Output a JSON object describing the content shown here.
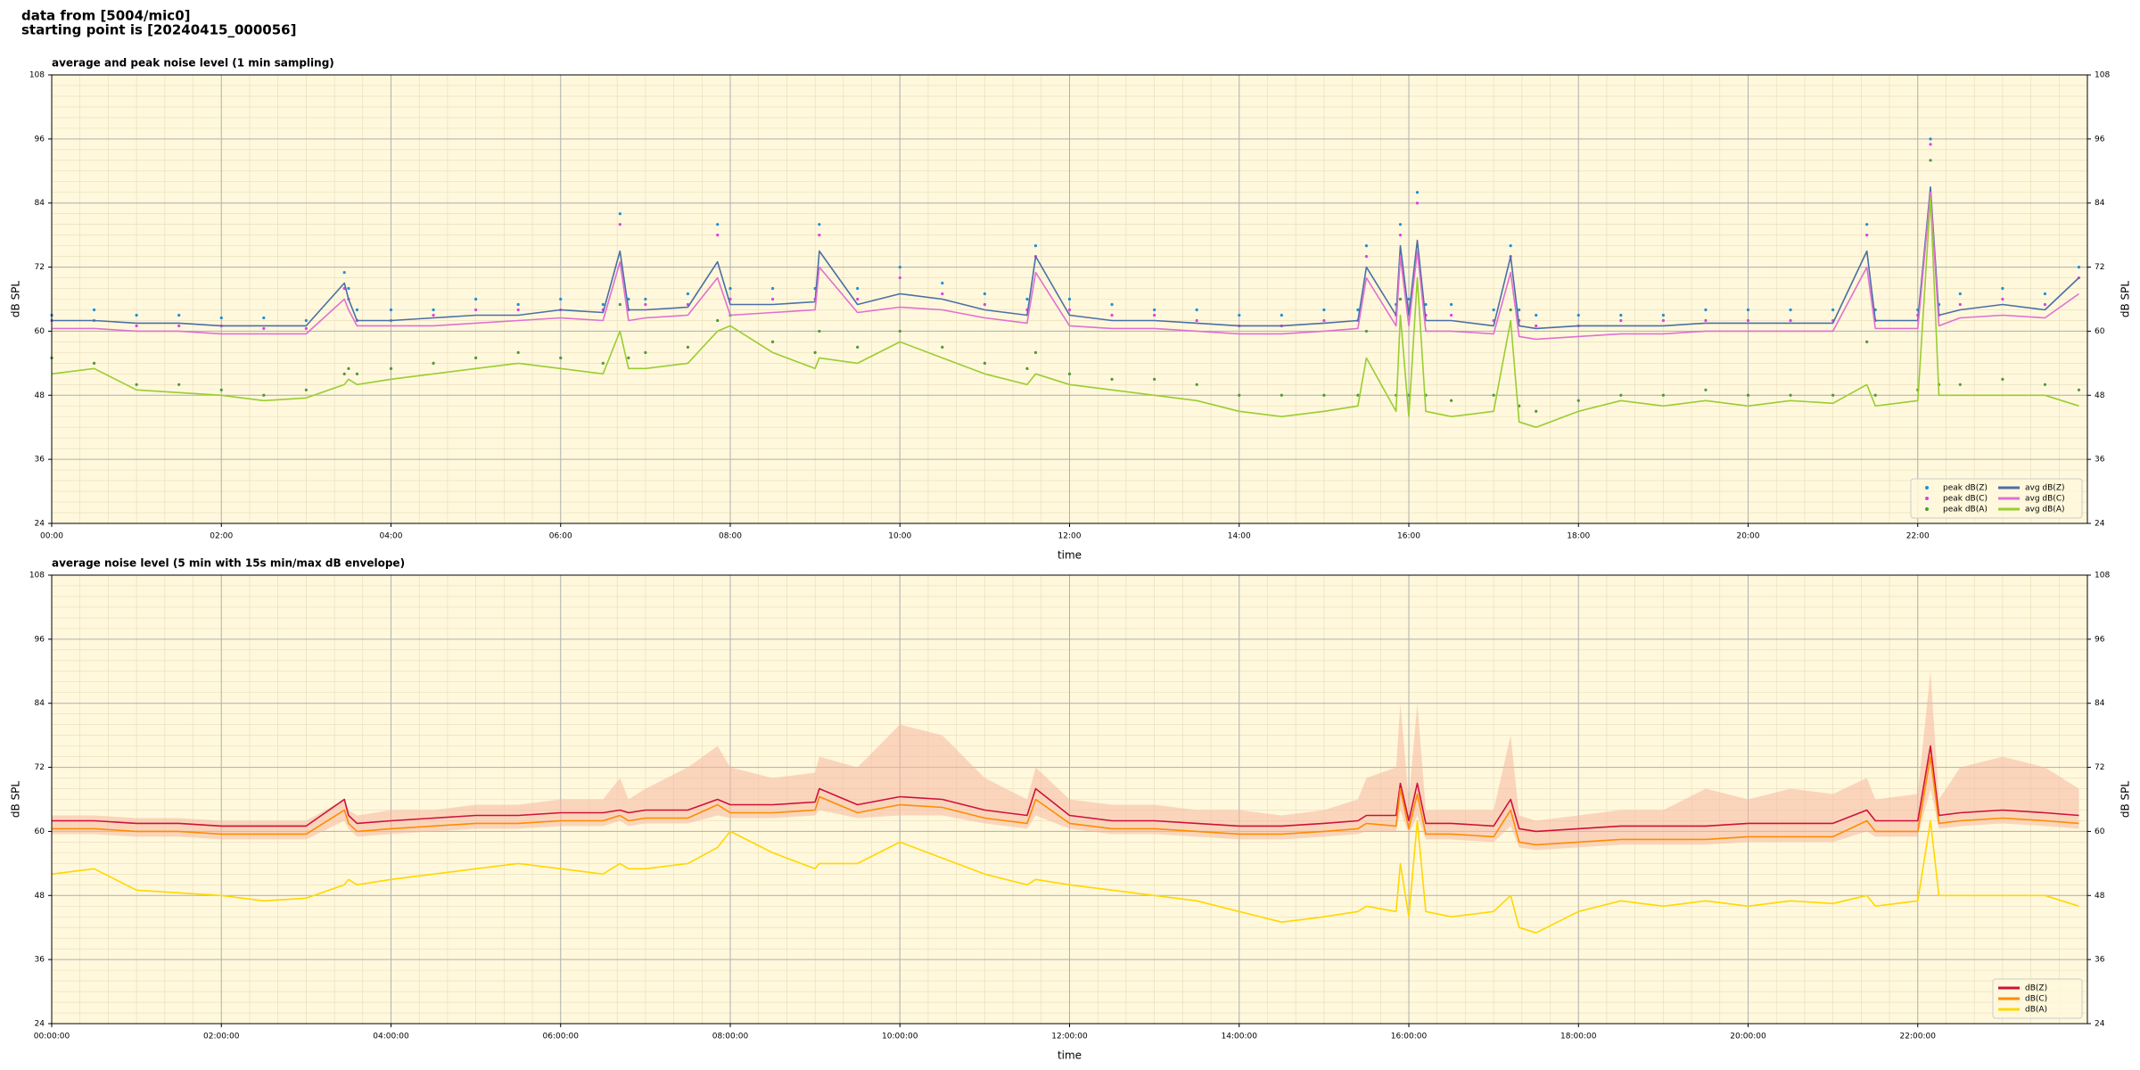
{
  "header": {
    "line1": "data from [5004/mic0]",
    "line2": "starting point is [20240415_000056]"
  },
  "chart_data": [
    {
      "type": "line",
      "title": "average and peak noise level (1 min sampling)",
      "x_label": "time",
      "y_label": "dB SPL",
      "background": "#fff8dc",
      "grid": true,
      "minor_grid": true,
      "legend": "lower right",
      "legend_columns": 2,
      "xlim": [
        0,
        24
      ],
      "ylim": [
        24,
        108
      ],
      "yticks": [
        24,
        36,
        48,
        60,
        72,
        84,
        96,
        108
      ],
      "xticks": [
        {
          "value": 0,
          "label": "00:00"
        },
        {
          "value": 2,
          "label": "02:00"
        },
        {
          "value": 4,
          "label": "04:00"
        },
        {
          "value": 6,
          "label": "06:00"
        },
        {
          "value": 8,
          "label": "08:00"
        },
        {
          "value": 10,
          "label": "10:00"
        },
        {
          "value": 12,
          "label": "12:00"
        },
        {
          "value": 14,
          "label": "14:00"
        },
        {
          "value": 16,
          "label": "16:00"
        },
        {
          "value": 18,
          "label": "18:00"
        },
        {
          "value": 20,
          "label": "20:00"
        },
        {
          "value": 22,
          "label": "22:00"
        }
      ],
      "x": [
        0,
        0.5,
        1,
        1.5,
        2,
        2.5,
        3,
        3.45,
        3.5,
        3.6,
        4,
        4.5,
        5,
        5.5,
        6,
        6.5,
        6.7,
        6.8,
        7,
        7.5,
        7.85,
        8,
        8.5,
        9,
        9.05,
        9.5,
        10,
        10.5,
        11,
        11.5,
        11.6,
        12,
        12.5,
        13,
        13.5,
        14,
        14.5,
        15,
        15.4,
        15.5,
        15.85,
        15.9,
        16,
        16.1,
        16.2,
        16.5,
        17,
        17.2,
        17.3,
        17.5,
        18,
        18.5,
        19,
        19.5,
        20,
        20.5,
        21,
        21.4,
        21.5,
        22,
        22.15,
        22.25,
        22.5,
        23,
        23.5,
        23.9
      ],
      "series": [
        {
          "name": "peak dB(Z)",
          "color": "#1f8fd6",
          "style": "dots",
          "values": [
            63,
            64,
            63,
            63,
            62.5,
            62.5,
            62,
            71,
            68,
            64,
            64,
            64,
            66,
            65,
            66,
            65,
            82,
            66,
            66,
            67,
            80,
            68,
            68,
            68,
            80,
            68,
            72,
            69,
            67,
            66,
            76,
            66,
            65,
            64,
            64,
            63,
            63,
            64,
            64,
            76,
            65,
            80,
            66,
            86,
            65,
            65,
            64,
            76,
            64,
            63,
            63,
            63,
            63,
            64,
            64,
            64,
            64,
            80,
            64,
            64,
            96,
            65,
            67,
            68,
            67,
            72
          ]
        },
        {
          "name": "peak dB(C)",
          "color": "#e040e0",
          "style": "dots",
          "values": [
            62,
            62,
            61,
            61,
            61,
            60.5,
            60.5,
            68,
            66,
            62,
            62,
            63,
            64,
            64,
            64,
            64,
            80,
            64,
            65,
            65,
            78,
            66,
            66,
            66,
            78,
            66,
            70,
            67,
            65,
            64,
            74,
            64,
            63,
            63,
            62,
            61,
            61,
            62,
            62,
            74,
            63,
            78,
            64,
            84,
            63,
            63,
            62,
            74,
            62,
            61,
            61,
            62,
            62,
            62,
            62,
            62,
            62,
            78,
            62,
            63,
            95,
            63,
            65,
            66,
            65,
            70
          ]
        },
        {
          "name": "peak dB(A)",
          "color": "#4a9a3a",
          "style": "dots",
          "values": [
            55,
            54,
            50,
            50,
            49,
            48,
            49,
            52,
            53,
            52,
            53,
            54,
            55,
            56,
            55,
            54,
            65,
            55,
            56,
            57,
            62,
            63,
            58,
            56,
            60,
            57,
            60,
            57,
            54,
            53,
            56,
            52,
            51,
            51,
            50,
            48,
            48,
            48,
            48,
            60,
            48,
            66,
            48,
            74,
            48,
            47,
            48,
            64,
            46,
            45,
            47,
            48,
            48,
            49,
            48,
            48,
            48,
            58,
            48,
            49,
            92,
            50,
            50,
            51,
            50,
            49
          ]
        },
        {
          "name": "avg dB(Z)",
          "color": "#4a6fa5",
          "style": "line",
          "values": [
            62,
            62,
            61.5,
            61.5,
            61,
            61,
            61,
            69,
            66,
            62,
            62,
            62.5,
            63,
            63,
            64,
            63.5,
            75,
            64,
            64,
            64.5,
            73,
            65,
            65,
            65.5,
            75,
            65,
            67,
            66,
            64,
            63,
            74,
            63,
            62,
            62,
            61.5,
            61,
            61,
            61.5,
            62,
            72,
            63,
            76,
            63,
            77,
            62,
            62,
            61,
            74,
            61,
            60.5,
            61,
            61,
            61,
            61.5,
            61.5,
            61.5,
            61.5,
            75,
            62,
            62,
            87,
            63,
            64,
            65,
            64,
            70
          ]
        },
        {
          "name": "avg dB(C)",
          "color": "#e070d0",
          "style": "line",
          "values": [
            60.5,
            60.5,
            60,
            60,
            59.5,
            59.5,
            59.5,
            66,
            64,
            61,
            61,
            61,
            61.5,
            62,
            62.5,
            62,
            73,
            62,
            62.5,
            63,
            70,
            63,
            63.5,
            64,
            72,
            63.5,
            64.5,
            64,
            62.5,
            61.5,
            71,
            61,
            60.5,
            60.5,
            60,
            59.5,
            59.5,
            60,
            60.5,
            70,
            61,
            74,
            61,
            75,
            60,
            60,
            59.5,
            71,
            59,
            58.5,
            59,
            59.5,
            59.5,
            60,
            60,
            60,
            60,
            72,
            60.5,
            60.5,
            86,
            61,
            62.5,
            63,
            62.5,
            67
          ]
        },
        {
          "name": "avg dB(A)",
          "color": "#9acd32",
          "style": "line",
          "values": [
            52,
            53,
            49,
            48.5,
            48,
            47,
            47.5,
            50,
            51,
            50,
            51,
            52,
            53,
            54,
            53,
            52,
            60,
            53,
            53,
            54,
            60,
            61,
            56,
            53,
            55,
            54,
            58,
            55,
            52,
            50,
            52,
            50,
            49,
            48,
            47,
            45,
            44,
            45,
            46,
            55,
            45,
            63,
            44,
            70,
            45,
            44,
            45,
            62,
            43,
            42,
            45,
            47,
            46,
            47,
            46,
            47,
            46.5,
            50,
            46,
            47,
            85,
            48,
            48,
            48,
            48,
            46
          ]
        }
      ]
    },
    {
      "type": "line",
      "title": "average noise level (5 min with 15s min/max dB envelope)",
      "x_label": "time",
      "y_label": "dB SPL",
      "background": "#fff8dc",
      "grid": true,
      "minor_grid": true,
      "legend": "lower right",
      "legend_columns": 1,
      "xlim": [
        0,
        24
      ],
      "ylim": [
        24,
        108
      ],
      "yticks": [
        24,
        36,
        48,
        60,
        72,
        84,
        96,
        108
      ],
      "xticks": [
        {
          "value": 0,
          "label": "00:00:00"
        },
        {
          "value": 2,
          "label": "02:00:00"
        },
        {
          "value": 4,
          "label": "04:00:00"
        },
        {
          "value": 6,
          "label": "06:00:00"
        },
        {
          "value": 8,
          "label": "08:00:00"
        },
        {
          "value": 10,
          "label": "10:00:00"
        },
        {
          "value": 12,
          "label": "12:00:00"
        },
        {
          "value": 14,
          "label": "14:00:00"
        },
        {
          "value": 16,
          "label": "16:00:00"
        },
        {
          "value": 18,
          "label": "18:00:00"
        },
        {
          "value": 20,
          "label": "20:00:00"
        },
        {
          "value": 22,
          "label": "22:00:00"
        }
      ],
      "x": [
        0,
        0.5,
        1,
        1.5,
        2,
        2.5,
        3,
        3.45,
        3.5,
        3.6,
        4,
        4.5,
        5,
        5.5,
        6,
        6.5,
        6.7,
        6.8,
        7,
        7.5,
        7.85,
        8,
        8.5,
        9,
        9.05,
        9.5,
        10,
        10.5,
        11,
        11.5,
        11.6,
        12,
        12.5,
        13,
        13.5,
        14,
        14.5,
        15,
        15.4,
        15.5,
        15.85,
        15.9,
        16,
        16.1,
        16.2,
        16.5,
        17,
        17.2,
        17.3,
        17.5,
        18,
        18.5,
        19,
        19.5,
        20,
        20.5,
        21,
        21.4,
        21.5,
        22,
        22.15,
        22.25,
        22.5,
        23,
        23.5,
        23.9
      ],
      "band": {
        "color": "#f5b8a0",
        "values": [
          63,
          63,
          62.5,
          62.5,
          62,
          62,
          62,
          66,
          64,
          63,
          64,
          64,
          65,
          65,
          66,
          66,
          70,
          66,
          68,
          72,
          76,
          72,
          70,
          71,
          74,
          72,
          80,
          78,
          70,
          66,
          72,
          66,
          65,
          65,
          64,
          64,
          63,
          64,
          66,
          70,
          72,
          84,
          66,
          84,
          64,
          64,
          64,
          78,
          63,
          62,
          63,
          64,
          64,
          68,
          66,
          68,
          67,
          70,
          66,
          67,
          90,
          66,
          72,
          74,
          72,
          68
        ],
        "min": [
          59.5,
          59.5,
          59,
          59,
          58.5,
          58.5,
          58.5,
          62,
          60.5,
          59,
          59.5,
          60,
          60.5,
          60.5,
          61,
          61,
          62,
          61,
          61.5,
          61.5,
          63,
          62.5,
          62.5,
          63,
          64,
          62.5,
          63,
          63,
          61.5,
          60.5,
          63,
          60.5,
          59.5,
          59.5,
          59,
          58.5,
          58.5,
          59,
          59.5,
          60,
          60,
          64,
          59.5,
          63,
          58.5,
          58.5,
          58,
          61,
          57,
          56.5,
          57,
          57.5,
          57.5,
          57.5,
          58,
          58,
          58,
          60,
          59,
          59,
          68,
          60.5,
          61,
          61.5,
          61,
          60.5
        ]
      },
      "series": [
        {
          "name": "dB(Z)",
          "color": "#d0103a",
          "style": "line",
          "values": [
            62,
            62,
            61.5,
            61.5,
            61,
            61,
            61,
            66,
            63,
            61.5,
            62,
            62.5,
            63,
            63,
            63.5,
            63.5,
            64,
            63.5,
            64,
            64,
            66,
            65,
            65,
            65.5,
            68,
            65,
            66.5,
            66,
            64,
            63,
            68,
            63,
            62,
            62,
            61.5,
            61,
            61,
            61.5,
            62,
            63,
            63,
            69,
            62,
            69,
            61.5,
            61.5,
            61,
            66,
            60.5,
            60,
            60.5,
            61,
            61,
            61,
            61.5,
            61.5,
            61.5,
            64,
            62,
            62,
            76,
            63,
            63.5,
            64,
            63.5,
            63
          ]
        },
        {
          "name": "dB(C)",
          "color": "#ff8c00",
          "style": "line",
          "values": [
            60.5,
            60.5,
            60,
            60,
            59.5,
            59.5,
            59.5,
            64,
            61.5,
            60,
            60.5,
            61,
            61.5,
            61.5,
            62,
            62,
            63,
            62,
            62.5,
            62.5,
            65,
            63.5,
            63.5,
            64,
            66.5,
            63.5,
            65,
            64.5,
            62.5,
            61.5,
            66,
            61.5,
            60.5,
            60.5,
            60,
            59.5,
            59.5,
            60,
            60.5,
            61.5,
            61,
            68,
            60.5,
            67,
            59.5,
            59.5,
            59,
            64,
            58,
            57.5,
            58,
            58.5,
            58.5,
            58.5,
            59,
            59,
            59,
            62,
            60,
            60,
            74,
            61.5,
            62,
            62.5,
            62,
            61.5
          ]
        },
        {
          "name": "dB(A)",
          "color": "#ffd700",
          "style": "line",
          "values": [
            52,
            53,
            49,
            48.5,
            48,
            47,
            47.5,
            50,
            51,
            50,
            51,
            52,
            53,
            54,
            53,
            52,
            54,
            53,
            53,
            54,
            57,
            60,
            56,
            53,
            54,
            54,
            58,
            55,
            52,
            50,
            51,
            50,
            49,
            48,
            47,
            45,
            43,
            44,
            45,
            46,
            45,
            54,
            44,
            62,
            45,
            44,
            45,
            48,
            42,
            41,
            45,
            47,
            46,
            47,
            46,
            47,
            46.5,
            48,
            46,
            47,
            62,
            48,
            48,
            48,
            48,
            46
          ]
        }
      ]
    }
  ]
}
